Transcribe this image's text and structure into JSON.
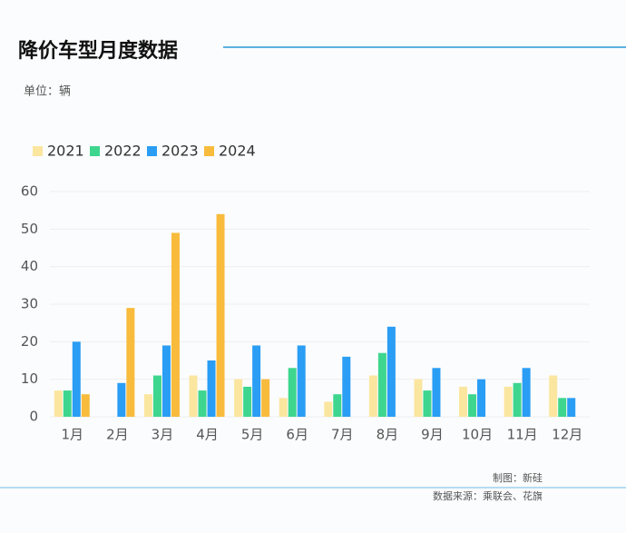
{
  "chart_data": {
    "type": "bar",
    "title": "降价车型月度数据",
    "subtitle": "单位：辆",
    "categories": [
      "1月",
      "2月",
      "3月",
      "4月",
      "5月",
      "6月",
      "7月",
      "8月",
      "9月",
      "10月",
      "11月",
      "12月"
    ],
    "series": [
      {
        "name": "2021",
        "color": "#fbe6a0",
        "values": [
          7,
          0,
          6,
          11,
          10,
          5,
          4,
          11,
          10,
          8,
          8,
          11
        ]
      },
      {
        "name": "2022",
        "color": "#3ed68e",
        "values": [
          7,
          0,
          11,
          7,
          8,
          13,
          6,
          17,
          7,
          6,
          9,
          5
        ]
      },
      {
        "name": "2023",
        "color": "#2a9df4",
        "values": [
          20,
          9,
          19,
          15,
          19,
          19,
          16,
          24,
          13,
          10,
          13,
          5
        ]
      },
      {
        "name": "2024",
        "color": "#f8bb3c",
        "values": [
          6,
          29,
          49,
          54,
          10,
          null,
          null,
          null,
          null,
          null,
          null,
          null
        ]
      }
    ],
    "ylim": [
      0,
      60
    ],
    "yticks": [
      0,
      10,
      20,
      30,
      40,
      50,
      60
    ],
    "grid": true,
    "credit": "制图：新硅",
    "source": "数据来源：乘联会、花旗"
  }
}
